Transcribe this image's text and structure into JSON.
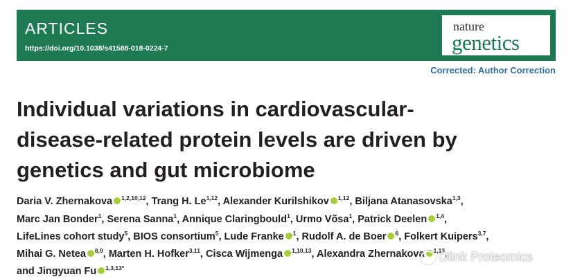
{
  "header": {
    "section": "ARTICLES",
    "doi": "https://doi.org/10.1038/s41588-018-0224-7",
    "journal_logo_top": "nature",
    "journal_logo_bottom": "genetics"
  },
  "correction_note": "Corrected: Author Correction",
  "title_lines": [
    "Individual variations in cardiovascular-",
    "disease-related protein levels are driven by",
    "genetics and gut microbiome"
  ],
  "authors": {
    "a1": "Daria V. Zhernakova",
    "a1_sup": "1,2,10,12",
    "a2": "Trang H. Le",
    "a2_sup": "1,12",
    "a3": "Alexander Kurilshikov",
    "a3_sup": "1,12",
    "a4": "Biljana Atanasovska",
    "a4_sup": "1,3",
    "a5": "Marc Jan Bonder",
    "a5_sup": "1",
    "a6": "Serena Sanna",
    "a6_sup": "1",
    "a7": "Annique Claringbould",
    "a7_sup": "1",
    "a8": "Urmo Võsa",
    "a8_sup": "1",
    "a9": "Patrick Deelen",
    "a9_sup": "1,4",
    "a10": "LifeLines cohort study",
    "a10_sup": "5",
    "a11": "BIOS consortium",
    "a11_sup": "5",
    "a12": "Lude Franke",
    "a12_sup": "1",
    "a13": "Rudolf A. de Boer",
    "a13_sup": "6",
    "a14": "Folkert Kuipers",
    "a14_sup": "3,7",
    "a15": "Mihai G. Netea",
    "a15_sup": "8,9",
    "a16": "Marten H. Hofker",
    "a16_sup": "3,11",
    "a17": "Cisca Wijmenga",
    "a17_sup": "1,10,13",
    "a18": "Alexandra Zhernakova",
    "a18_sup": "1,13",
    "a19": "and Jingyuan Fu",
    "a19_sup": "1,3,13*"
  },
  "watermark": "Olink Proteomics"
}
